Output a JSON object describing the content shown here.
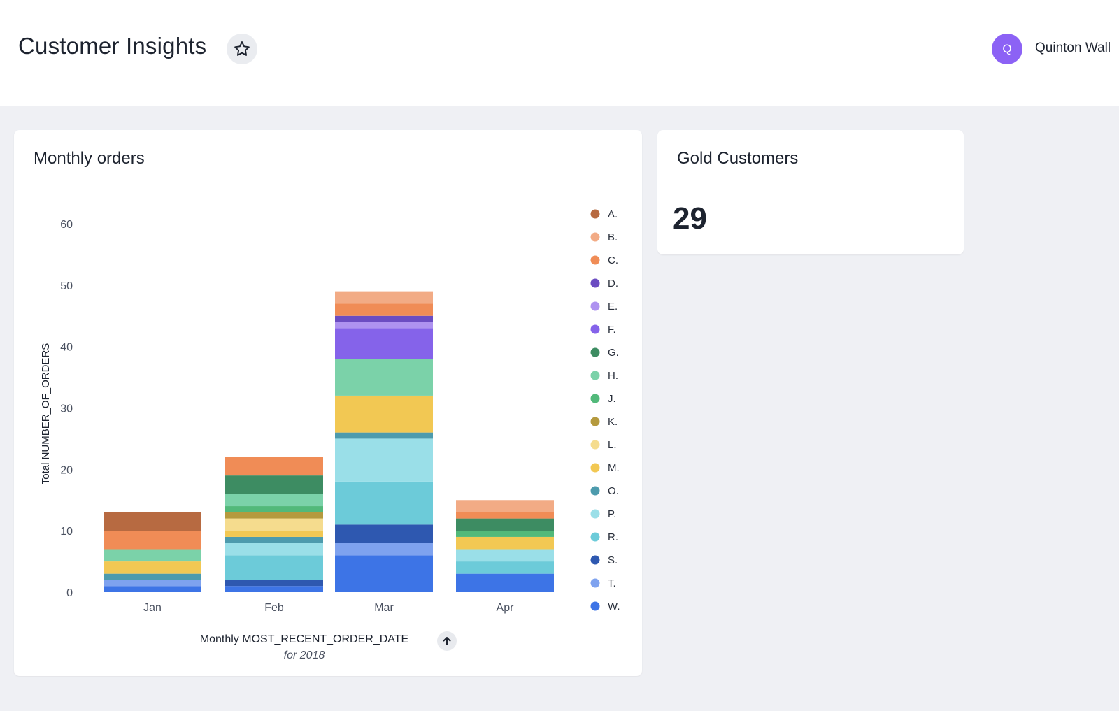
{
  "header": {
    "title": "Customer Insights",
    "user": {
      "initial": "Q",
      "name": "Quinton Wall",
      "avatar_color": "#8c62f5"
    }
  },
  "orders_card": {
    "title": "Monthly orders",
    "x_axis_title": "Monthly MOST_RECENT_ORDER_DATE",
    "x_axis_subtitle": "for 2018",
    "sort_icon": "arrow-up-icon"
  },
  "gold_card": {
    "title": "Gold Customers",
    "value": "29"
  },
  "chart_data": {
    "type": "bar",
    "stacked": true,
    "categories": [
      "Jan",
      "Feb",
      "Mar",
      "Apr"
    ],
    "ylabel": "Total NUMBER_OF_ORDERS",
    "xlabel": "Monthly MOST_RECENT_ORDER_DATE",
    "ylim": [
      0,
      60
    ],
    "yticks": [
      0,
      10,
      20,
      30,
      40,
      50,
      60
    ],
    "legend_position": "right",
    "series": [
      {
        "name": "W.",
        "color": "#3d74e6",
        "values": [
          1,
          1,
          6,
          3
        ]
      },
      {
        "name": "T.",
        "color": "#7ea2ef",
        "values": [
          1,
          0,
          2,
          0
        ]
      },
      {
        "name": "S.",
        "color": "#2e58b0",
        "values": [
          0,
          1,
          3,
          0
        ]
      },
      {
        "name": "R.",
        "color": "#6ccbd9",
        "values": [
          0,
          4,
          7,
          2
        ]
      },
      {
        "name": "P.",
        "color": "#9adfe8",
        "values": [
          0,
          2,
          7,
          2
        ]
      },
      {
        "name": "O.",
        "color": "#4d9bad",
        "values": [
          1,
          1,
          1,
          0
        ]
      },
      {
        "name": "M.",
        "color": "#f2c853",
        "values": [
          2,
          1,
          6,
          2
        ]
      },
      {
        "name": "L.",
        "color": "#f5dc8e",
        "values": [
          0,
          2,
          0,
          0
        ]
      },
      {
        "name": "K.",
        "color": "#b59a3e",
        "values": [
          0,
          1,
          0,
          0
        ]
      },
      {
        "name": "J.",
        "color": "#52b97a",
        "values": [
          0,
          1,
          0,
          1
        ]
      },
      {
        "name": "H.",
        "color": "#7bd2a9",
        "values": [
          2,
          2,
          6,
          0
        ]
      },
      {
        "name": "G.",
        "color": "#3d8c62",
        "values": [
          0,
          3,
          0,
          2
        ]
      },
      {
        "name": "F.",
        "color": "#8563ea",
        "values": [
          0,
          0,
          5,
          0
        ]
      },
      {
        "name": "E.",
        "color": "#ae92f0",
        "values": [
          0,
          0,
          1,
          0
        ]
      },
      {
        "name": "D.",
        "color": "#6b4cc2",
        "values": [
          0,
          0,
          1,
          0
        ]
      },
      {
        "name": "C.",
        "color": "#f08c56",
        "values": [
          3,
          3,
          2,
          1
        ]
      },
      {
        "name": "B.",
        "color": "#f2ab85",
        "values": [
          0,
          0,
          2,
          2
        ]
      },
      {
        "name": "A.",
        "color": "#b76a41",
        "values": [
          3,
          0,
          0,
          0
        ]
      }
    ],
    "legend_order": [
      "A.",
      "B.",
      "C.",
      "D.",
      "E.",
      "F.",
      "G.",
      "H.",
      "J.",
      "K.",
      "L.",
      "M.",
      "O.",
      "P.",
      "R.",
      "S.",
      "T.",
      "W."
    ]
  }
}
